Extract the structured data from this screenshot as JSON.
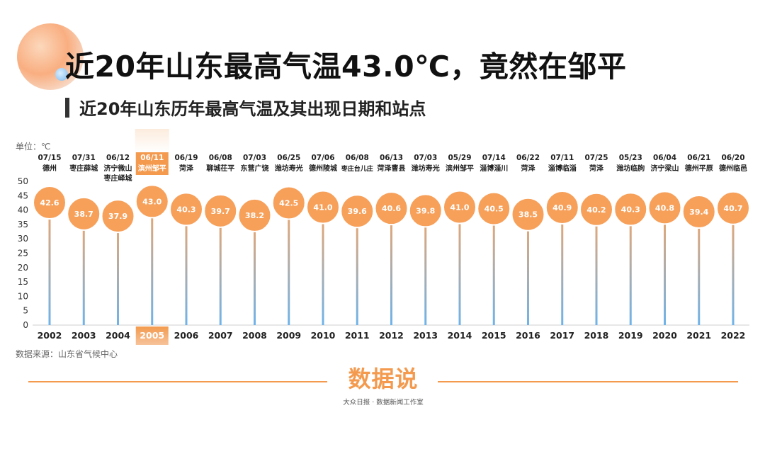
{
  "header": {
    "title": "近20年山东最高气温43.0℃，竟然在邹平",
    "subtitle": "近20年山东历年最高气温及其出现日期和站点"
  },
  "chart_data": {
    "type": "lollipop",
    "unit_label": "单位：℃",
    "categories": [
      "2002",
      "2003",
      "2004",
      "2005",
      "2006",
      "2007",
      "2008",
      "2009",
      "2010",
      "2011",
      "2012",
      "2013",
      "2014",
      "2015",
      "2016",
      "2017",
      "2018",
      "2019",
      "2020",
      "2021",
      "2022"
    ],
    "values": [
      42.6,
      38.7,
      37.9,
      43.0,
      40.3,
      39.7,
      38.2,
      42.5,
      41.0,
      39.6,
      40.6,
      39.8,
      41.0,
      40.5,
      38.5,
      40.9,
      40.2,
      40.3,
      40.8,
      39.4,
      40.7
    ],
    "value_labels": [
      "42.6",
      "38.7",
      "37.9",
      "43.0",
      "40.3",
      "39.7",
      "38.2",
      "42.5",
      "41.0",
      "39.6",
      "40.6",
      "39.8",
      "41.0",
      "40.5",
      "38.5",
      "40.9",
      "40.2",
      "40.3",
      "40.8",
      "39.4",
      "40.7"
    ],
    "dates": [
      "07/15",
      "07/31",
      "06/12",
      "06/11",
      "06/19",
      "06/08",
      "07/03",
      "06/25",
      "07/06",
      "06/08",
      "06/13",
      "07/03",
      "05/29",
      "07/14",
      "06/22",
      "07/11",
      "07/25",
      "05/23",
      "06/04",
      "06/21",
      "06/20"
    ],
    "stations": [
      [
        "德州"
      ],
      [
        "枣庄薛城"
      ],
      [
        "济宁微山",
        "枣庄峄城"
      ],
      [
        "滨州邹平"
      ],
      [
        "菏泽"
      ],
      [
        "聊城茌平"
      ],
      [
        "东营广饶"
      ],
      [
        "潍坊寿光"
      ],
      [
        "德州陵城"
      ],
      [
        "枣庄台儿庄"
      ],
      [
        "菏泽曹县"
      ],
      [
        "潍坊寿光"
      ],
      [
        "滨州邹平"
      ],
      [
        "淄博淄川"
      ],
      [
        "菏泽"
      ],
      [
        "淄博临淄"
      ],
      [
        "菏泽"
      ],
      [
        "潍坊临朐"
      ],
      [
        "济宁梁山"
      ],
      [
        "德州平原"
      ],
      [
        "德州临邑"
      ]
    ],
    "y_ticks": [
      "0",
      "5",
      "10",
      "15",
      "20",
      "25",
      "30",
      "35",
      "40",
      "45",
      "50"
    ],
    "ylim": [
      0,
      50
    ],
    "highlight_category": "2005",
    "grid": false
  },
  "colors": {
    "accent": "#f39a4e",
    "bubble": "#f7a05a",
    "stick_top": "#f2a567",
    "stick_bottom": "#6eb3ea",
    "highlight": "#f39a4e"
  },
  "footer": {
    "source": "数据来源：山东省气候中心",
    "logo": "数据说",
    "logo_sub": "大众日报 · 数据新闻工作室"
  }
}
